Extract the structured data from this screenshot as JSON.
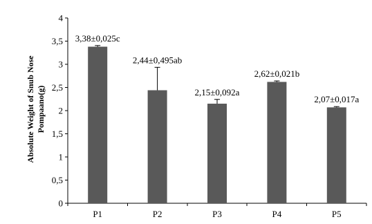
{
  "chart_data": {
    "type": "bar",
    "categories": [
      "P1",
      "P2",
      "P3",
      "P4",
      "P5"
    ],
    "values": [
      3.38,
      2.44,
      2.15,
      2.62,
      2.07
    ],
    "errors": [
      0.025,
      0.495,
      0.092,
      0.021,
      0.017
    ],
    "data_labels": [
      "3,38±0,025c",
      "2,44±0,495ab",
      "2,15±0,092a",
      "2,62±0,021b",
      "2,07±0,017a"
    ],
    "ylabel_lines": [
      "Absolute Weight of Snub Nose",
      "Pompaano(g)"
    ],
    "ylim": [
      0,
      4
    ],
    "yticks": [
      0,
      0.5,
      1,
      1.5,
      2,
      2.5,
      3,
      3.5,
      4
    ],
    "ytick_labels": [
      "0",
      "0,5",
      "1",
      "1,5",
      "2",
      "2,5",
      "3",
      "3,5",
      "4"
    ],
    "bar_color": "#595959",
    "grid": false,
    "legend": "none"
  }
}
